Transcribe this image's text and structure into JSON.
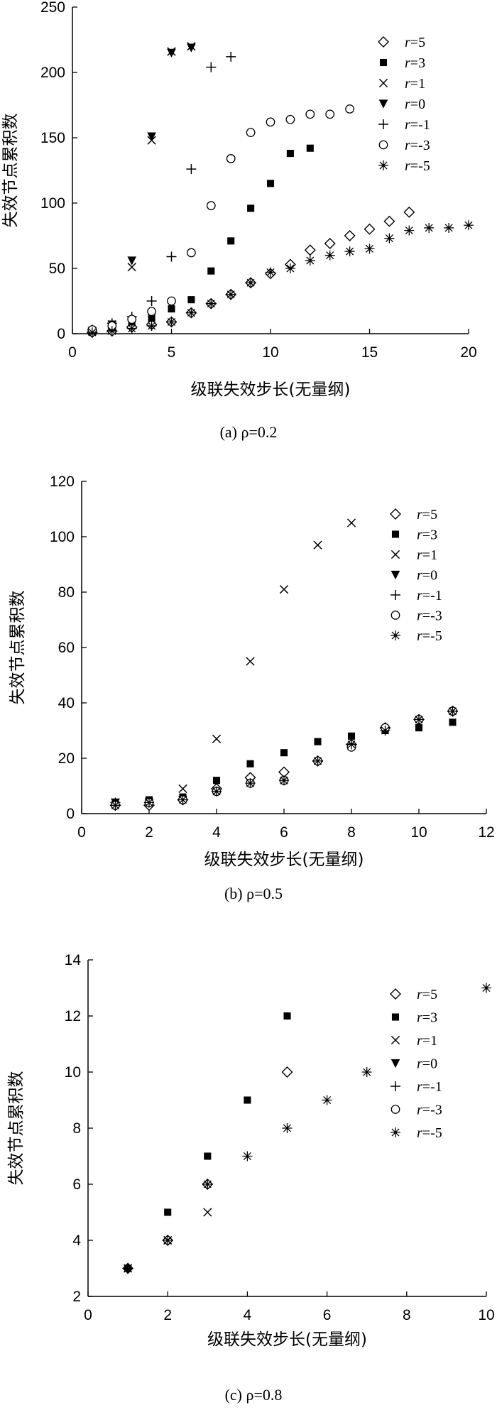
{
  "chart_data": [
    {
      "type": "scatter",
      "caption": "(a) ρ=0.2",
      "xlabel": "级联失效步长(无量纲)",
      "ylabel": "失效节点累积数",
      "xlim": [
        0,
        20
      ],
      "ylim": [
        0,
        250
      ],
      "xticks": [
        0,
        5,
        10,
        15,
        20
      ],
      "yticks": [
        0,
        50,
        100,
        150,
        200,
        250
      ],
      "legend_position": "top-right",
      "series": [
        {
          "name": "r=5",
          "marker": "diamond-open",
          "points": [
            [
              1,
              1
            ],
            [
              2,
              2
            ],
            [
              3,
              5
            ],
            [
              4,
              7
            ],
            [
              5,
              9
            ],
            [
              6,
              16
            ],
            [
              7,
              23
            ],
            [
              8,
              30
            ],
            [
              9,
              39
            ],
            [
              10,
              46
            ],
            [
              11,
              53
            ],
            [
              12,
              64
            ],
            [
              13,
              69
            ],
            [
              14,
              75
            ],
            [
              15,
              80
            ],
            [
              16,
              86
            ],
            [
              17,
              93
            ]
          ]
        },
        {
          "name": "r=3",
          "marker": "square-filled",
          "points": [
            [
              1,
              2
            ],
            [
              2,
              5
            ],
            [
              3,
              9
            ],
            [
              4,
              12
            ],
            [
              5,
              19
            ],
            [
              6,
              26
            ],
            [
              7,
              48
            ],
            [
              8,
              71
            ],
            [
              9,
              96
            ],
            [
              10,
              115
            ],
            [
              11,
              138
            ],
            [
              12,
              142
            ]
          ]
        },
        {
          "name": "r=1",
          "marker": "x",
          "points": [
            [
              1,
              2
            ],
            [
              2,
              7
            ],
            [
              3,
              51
            ],
            [
              4,
              148
            ],
            [
              5,
              216
            ],
            [
              6,
              220
            ]
          ]
        },
        {
          "name": "r=0",
          "marker": "triangle-down-filled",
          "points": [
            [
              1,
              2
            ],
            [
              2,
              7
            ],
            [
              3,
              56
            ],
            [
              4,
              151
            ],
            [
              5,
              215
            ],
            [
              6,
              219
            ]
          ]
        },
        {
          "name": "r=-1",
          "marker": "plus",
          "points": [
            [
              1,
              3
            ],
            [
              2,
              8
            ],
            [
              3,
              13
            ],
            [
              4,
              25
            ],
            [
              5,
              59
            ],
            [
              6,
              126
            ],
            [
              7,
              204
            ],
            [
              8,
              212
            ]
          ]
        },
        {
          "name": "r=-3",
          "marker": "circle-open",
          "points": [
            [
              1,
              3
            ],
            [
              2,
              6
            ],
            [
              3,
              11
            ],
            [
              4,
              17
            ],
            [
              5,
              25
            ],
            [
              6,
              62
            ],
            [
              7,
              98
            ],
            [
              8,
              134
            ],
            [
              9,
              154
            ],
            [
              10,
              162
            ],
            [
              11,
              164
            ],
            [
              12,
              168
            ],
            [
              13,
              168
            ],
            [
              14,
              172
            ]
          ]
        },
        {
          "name": "r=-5",
          "marker": "asterisk",
          "points": [
            [
              1,
              1
            ],
            [
              2,
              2
            ],
            [
              3,
              4
            ],
            [
              4,
              6
            ],
            [
              5,
              9
            ],
            [
              6,
              16
            ],
            [
              7,
              23
            ],
            [
              8,
              30
            ],
            [
              9,
              39
            ],
            [
              10,
              47
            ],
            [
              11,
              50
            ],
            [
              12,
              56
            ],
            [
              13,
              60
            ],
            [
              14,
              63
            ],
            [
              15,
              65
            ],
            [
              16,
              73
            ],
            [
              17,
              79
            ],
            [
              18,
              81
            ],
            [
              19,
              81
            ],
            [
              20,
              83
            ]
          ]
        }
      ]
    },
    {
      "type": "scatter",
      "caption": "(b) ρ=0.5",
      "xlabel": "级联失效步长(无量纲)",
      "ylabel": "失效节点累积数",
      "xlim": [
        0,
        12
      ],
      "ylim": [
        0,
        120
      ],
      "xticks": [
        0,
        2,
        4,
        6,
        8,
        10,
        12
      ],
      "yticks": [
        0,
        20,
        40,
        60,
        80,
        100,
        120
      ],
      "legend_position": "top-right",
      "series": [
        {
          "name": "r=5",
          "marker": "diamond-open",
          "points": [
            [
              1,
              3
            ],
            [
              2,
              3
            ],
            [
              3,
              5
            ],
            [
              4,
              9
            ],
            [
              5,
              13
            ],
            [
              6,
              15
            ],
            [
              7,
              19
            ],
            [
              8,
              25
            ],
            [
              9,
              31
            ],
            [
              10,
              34
            ],
            [
              11,
              37
            ]
          ]
        },
        {
          "name": "r=3",
          "marker": "square-filled",
          "points": [
            [
              1,
              4
            ],
            [
              2,
              5
            ],
            [
              3,
              6
            ],
            [
              4,
              12
            ],
            [
              5,
              18
            ],
            [
              6,
              22
            ],
            [
              7,
              26
            ],
            [
              8,
              28
            ],
            [
              9,
              30
            ],
            [
              10,
              31
            ],
            [
              11,
              33
            ]
          ]
        },
        {
          "name": "r=1",
          "marker": "x",
          "points": [
            [
              1,
              4
            ],
            [
              2,
              4
            ],
            [
              3,
              9
            ],
            [
              4,
              27
            ],
            [
              5,
              55
            ],
            [
              6,
              81
            ],
            [
              7,
              97
            ],
            [
              8,
              105
            ]
          ]
        },
        {
          "name": "r=0",
          "marker": "triangle-down-filled",
          "points": [
            [
              1,
              4
            ],
            [
              2,
              4
            ],
            [
              3,
              5
            ]
          ]
        },
        {
          "name": "r=-1",
          "marker": "plus",
          "points": [
            [
              1,
              4
            ],
            [
              2,
              4
            ],
            [
              3,
              5
            ]
          ]
        },
        {
          "name": "r=-3",
          "marker": "circle-open",
          "points": [
            [
              1,
              3
            ],
            [
              2,
              4
            ],
            [
              3,
              5
            ],
            [
              4,
              8
            ],
            [
              5,
              11
            ],
            [
              6,
              12
            ],
            [
              7,
              19
            ],
            [
              8,
              24
            ],
            [
              9,
              31
            ],
            [
              10,
              34
            ],
            [
              11,
              37
            ]
          ]
        },
        {
          "name": "r=-5",
          "marker": "asterisk",
          "points": [
            [
              1,
              3
            ],
            [
              2,
              4
            ],
            [
              3,
              5
            ],
            [
              4,
              8
            ],
            [
              5,
              11
            ],
            [
              6,
              12
            ],
            [
              7,
              19
            ],
            [
              8,
              25
            ],
            [
              9,
              30
            ],
            [
              10,
              34
            ],
            [
              11,
              37
            ]
          ]
        }
      ]
    },
    {
      "type": "scatter",
      "caption": "(c) ρ=0.8",
      "xlabel": "级联失效步长(无量纲)",
      "ylabel": "失效节点累积数",
      "xlim": [
        0,
        10
      ],
      "ylim": [
        2,
        14
      ],
      "xticks": [
        0,
        2,
        4,
        6,
        8,
        10
      ],
      "yticks": [
        2,
        4,
        6,
        8,
        10,
        12,
        14
      ],
      "legend_position": "top-right",
      "series": [
        {
          "name": "r=5",
          "marker": "diamond-open",
          "points": [
            [
              1,
              3
            ],
            [
              2,
              4
            ],
            [
              3,
              6
            ],
            [
              5,
              10
            ]
          ]
        },
        {
          "name": "r=3",
          "marker": "square-filled",
          "points": [
            [
              1,
              3
            ],
            [
              2,
              5
            ],
            [
              3,
              7
            ],
            [
              4,
              9
            ],
            [
              5,
              12
            ]
          ]
        },
        {
          "name": "r=1",
          "marker": "x",
          "points": [
            [
              1,
              3
            ],
            [
              2,
              4
            ],
            [
              3,
              5
            ]
          ]
        },
        {
          "name": "r=0",
          "marker": "triangle-down-filled",
          "points": []
        },
        {
          "name": "r=-1",
          "marker": "plus",
          "points": []
        },
        {
          "name": "r=-3",
          "marker": "circle-open",
          "points": []
        },
        {
          "name": "r=-5",
          "marker": "asterisk",
          "points": [
            [
              1,
              3
            ],
            [
              2,
              4
            ],
            [
              3,
              6
            ],
            [
              4,
              7
            ],
            [
              5,
              8
            ],
            [
              6,
              9
            ],
            [
              7,
              10
            ],
            [
              10,
              13
            ]
          ]
        }
      ]
    }
  ]
}
